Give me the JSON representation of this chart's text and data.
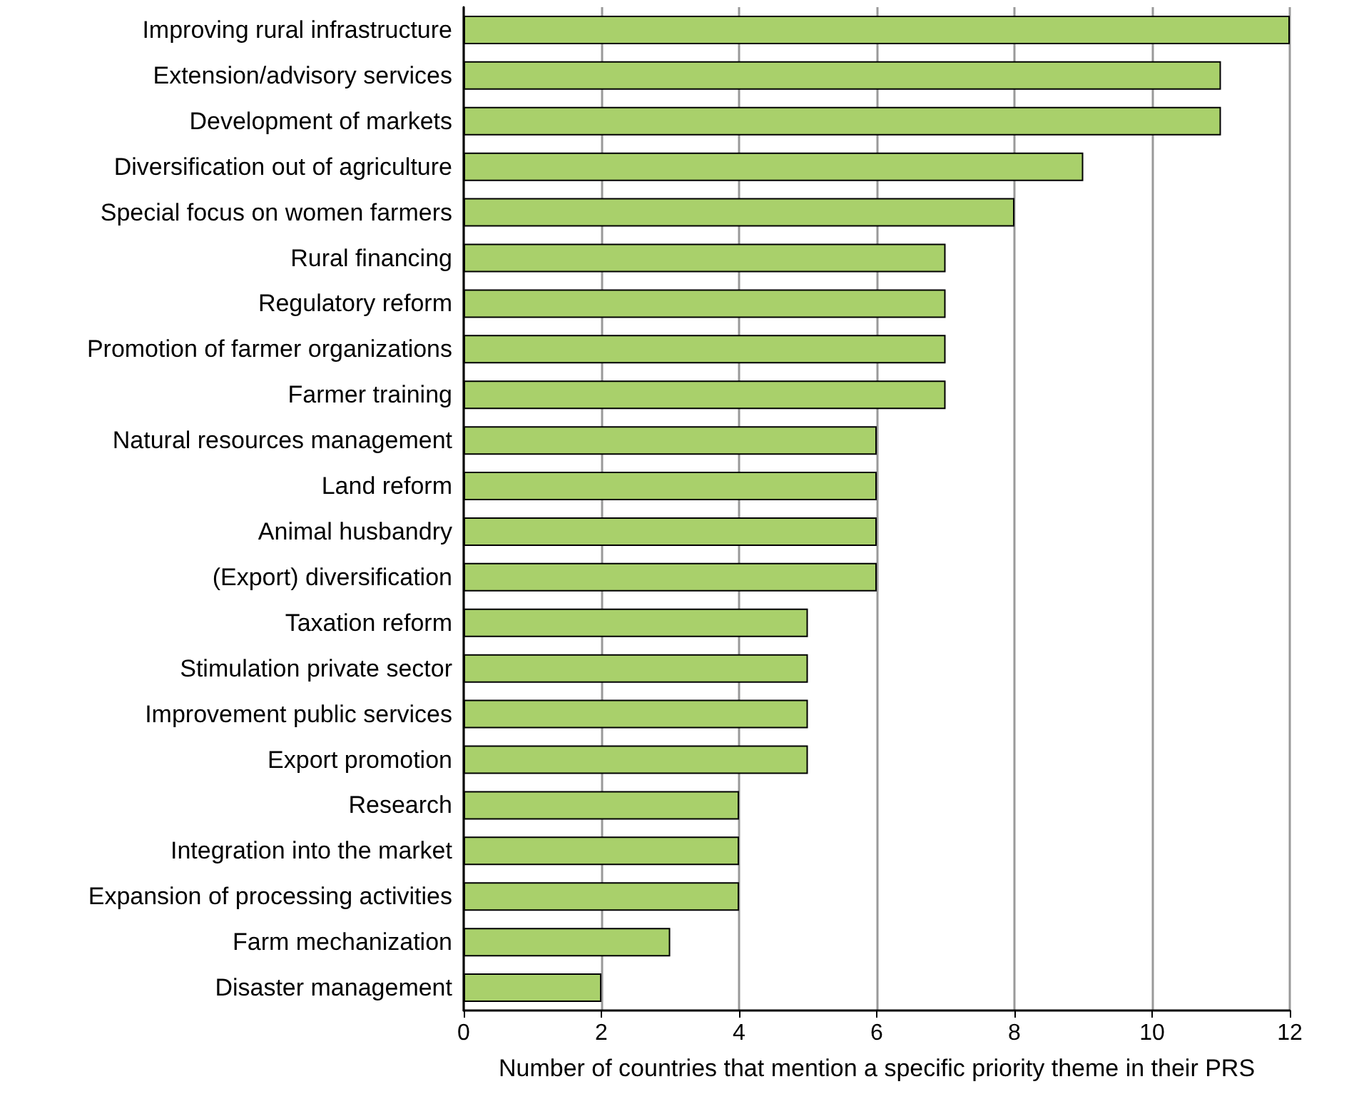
{
  "chart_data": {
    "type": "bar",
    "orientation": "horizontal",
    "xlabel": "Number of countries that mention a specific priority theme in their PRS",
    "categories": [
      "Improving rural infrastructure",
      "Extension/advisory services",
      "Development of markets",
      "Diversification out of agriculture",
      "Special focus on women farmers",
      "Rural financing",
      "Regulatory reform",
      "Promotion of farmer organizations",
      "Farmer training",
      "Natural resources management",
      "Land reform",
      "Animal husbandry",
      "(Export) diversification",
      "Taxation reform",
      "Stimulation private sector",
      "Improvement public services",
      "Export promotion",
      "Research",
      "Integration into the market",
      "Expansion of processing activities",
      "Farm mechanization",
      "Disaster management"
    ],
    "values": [
      12,
      11,
      11,
      9,
      8,
      7,
      7,
      7,
      7,
      6,
      6,
      6,
      6,
      5,
      5,
      5,
      5,
      4,
      4,
      4,
      3,
      2
    ],
    "color": "#a9d06b",
    "xlim": [
      0,
      12
    ],
    "xticks": [
      0,
      2,
      4,
      6,
      8,
      10,
      12
    ],
    "grid": "x"
  }
}
